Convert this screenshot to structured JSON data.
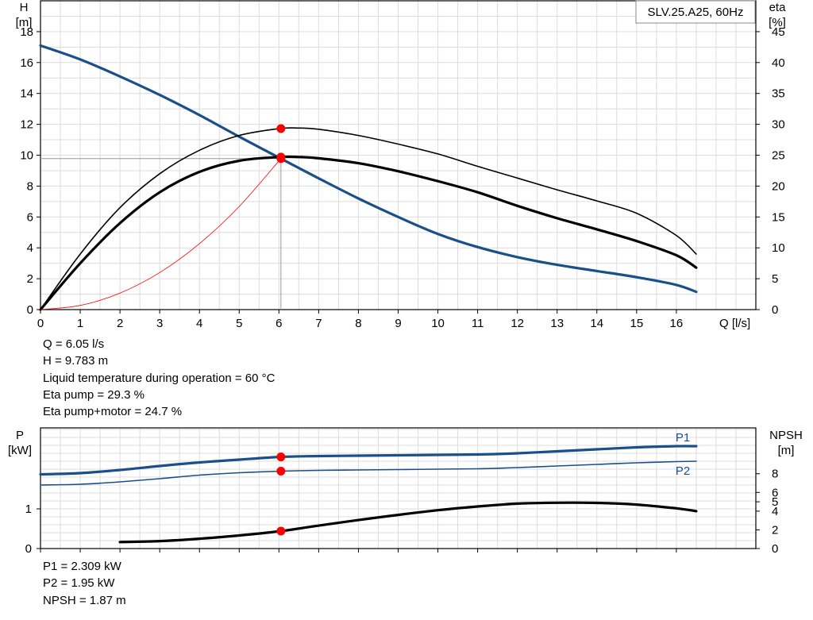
{
  "chart_data": [
    {
      "type": "line",
      "title": "SLV.25.A25, 60Hz",
      "xlabel": "Q [l/s]",
      "ylabel": "H\n[m]",
      "ylabel_right": "eta\n[%]",
      "xlim": [
        0,
        18
      ],
      "ylim": [
        0,
        20
      ],
      "ylim_right": [
        0,
        50
      ],
      "x_ticks": [
        0,
        1,
        2,
        3,
        4,
        5,
        6,
        7,
        8,
        9,
        10,
        11,
        12,
        13,
        14,
        15,
        16
      ],
      "y_ticks": [
        0,
        2,
        4,
        6,
        8,
        10,
        12,
        14,
        16,
        18
      ],
      "y_ticks_right": [
        0,
        5,
        10,
        15,
        20,
        25,
        30,
        35,
        40,
        45
      ],
      "grid": true,
      "series": [
        {
          "name": "",
          "axis": "left",
          "color": "#1a4f8a",
          "width": 3.2,
          "x": [
            0,
            1,
            2,
            3,
            4,
            5,
            6.05,
            7,
            8,
            9,
            10,
            11,
            12,
            13,
            14,
            15,
            16,
            16.5
          ],
          "y": [
            17.1,
            16.2,
            15.1,
            13.9,
            12.6,
            11.2,
            9.78,
            8.5,
            7.2,
            6.0,
            4.9,
            4.05,
            3.4,
            2.9,
            2.5,
            2.1,
            1.6,
            1.15
          ]
        },
        {
          "name": "",
          "axis": "right",
          "color": "#000000",
          "width": 1.6,
          "x": [
            0,
            1,
            2,
            3,
            4,
            5,
            6,
            6.5,
            7,
            8,
            9,
            10,
            11,
            12,
            13,
            14,
            15,
            16,
            16.5
          ],
          "y": [
            0,
            9,
            16.5,
            22,
            25.8,
            28.2,
            29.3,
            29.4,
            29.2,
            28.2,
            26.8,
            25.2,
            23.2,
            21.3,
            19.4,
            17.6,
            15.6,
            12,
            9
          ]
        },
        {
          "name": "",
          "axis": "right",
          "color": "#000000",
          "width": 3.2,
          "x": [
            0,
            1,
            2,
            3,
            4,
            5,
            6,
            6.5,
            7,
            8,
            9,
            10,
            11,
            12,
            13,
            14,
            15,
            16,
            16.5
          ],
          "y": [
            0,
            7.5,
            14,
            19,
            22.3,
            24.1,
            24.7,
            24.7,
            24.5,
            23.7,
            22.4,
            20.8,
            19.0,
            16.8,
            14.8,
            13,
            11.1,
            8.8,
            6.8
          ]
        },
        {
          "name": "",
          "axis": "left",
          "color": "#ff0000",
          "width": 0.8,
          "x": [
            0,
            1,
            2,
            3,
            4,
            5,
            6.05
          ],
          "y": [
            0,
            0.27,
            1.07,
            2.4,
            4.27,
            6.68,
            9.78
          ]
        }
      ],
      "operating_point": {
        "Q": 6.05,
        "H": 9.783
      },
      "markers": [
        {
          "x": 6.05,
          "y": 29.3,
          "axis": "right"
        },
        {
          "x": 6.05,
          "y": 24.7,
          "axis": "right"
        },
        {
          "x": 6.05,
          "y": 9.783,
          "axis": "left"
        }
      ]
    },
    {
      "type": "line",
      "title": "",
      "xlabel": "",
      "ylabel": "P\n[kW]",
      "ylabel_right": "NPSH\n[m]",
      "xlim": [
        0,
        18
      ],
      "ylim": [
        0,
        3.04
      ],
      "ylim_right": [
        0,
        12.9
      ],
      "y_ticks": [
        0,
        1
      ],
      "y_ticks_right": [
        0,
        2,
        4,
        5,
        6,
        8
      ],
      "grid": true,
      "series": [
        {
          "name": "P1",
          "axis": "left",
          "color": "#1a4f8a",
          "width": 3.2,
          "x": [
            0,
            1,
            2,
            3,
            4,
            5,
            6.05,
            7,
            8,
            9,
            10,
            11,
            12,
            13,
            14,
            15,
            16,
            16.5
          ],
          "y": [
            1.87,
            1.9,
            1.98,
            2.08,
            2.17,
            2.24,
            2.309,
            2.33,
            2.34,
            2.35,
            2.36,
            2.37,
            2.4,
            2.45,
            2.5,
            2.55,
            2.58,
            2.58
          ]
        },
        {
          "name": "P2",
          "axis": "left",
          "color": "#1a4f8a",
          "width": 1.6,
          "x": [
            0,
            1,
            2,
            3,
            4,
            5,
            6.05,
            7,
            8,
            9,
            10,
            11,
            12,
            13,
            14,
            15,
            16,
            16.5
          ],
          "y": [
            1.6,
            1.62,
            1.68,
            1.76,
            1.85,
            1.91,
            1.95,
            1.97,
            1.98,
            1.99,
            2.0,
            2.01,
            2.04,
            2.08,
            2.12,
            2.16,
            2.19,
            2.2
          ]
        },
        {
          "name": "",
          "axis": "right",
          "color": "#000000",
          "width": 3.2,
          "x": [
            2,
            3,
            4,
            5,
            6.05,
            7,
            8,
            9,
            10,
            11,
            12,
            13,
            14,
            15,
            16,
            16.5
          ],
          "y": [
            0.7,
            0.8,
            1.05,
            1.4,
            1.87,
            2.45,
            3.05,
            3.6,
            4.1,
            4.5,
            4.8,
            4.9,
            4.88,
            4.7,
            4.3,
            4.0
          ]
        }
      ],
      "markers": [
        {
          "x": 6.05,
          "y": 2.309,
          "axis": "left"
        },
        {
          "x": 6.05,
          "y": 1.95,
          "axis": "left"
        },
        {
          "x": 6.05,
          "y": 1.87,
          "axis": "right"
        }
      ]
    }
  ],
  "info_top": {
    "q": "Q = 6.05 l/s",
    "h": "H = 9.783 m",
    "temp": "Liquid temperature during operation = 60 °C",
    "eta_pump": "Eta pump = 29.3 %",
    "eta_pump_motor": "Eta pump+motor = 24.7 %"
  },
  "info_bottom": {
    "p1": "P1 = 2.309 kW",
    "p2": "P2 = 1.95 kW",
    "npsh": "NPSH = 1.87 m"
  }
}
